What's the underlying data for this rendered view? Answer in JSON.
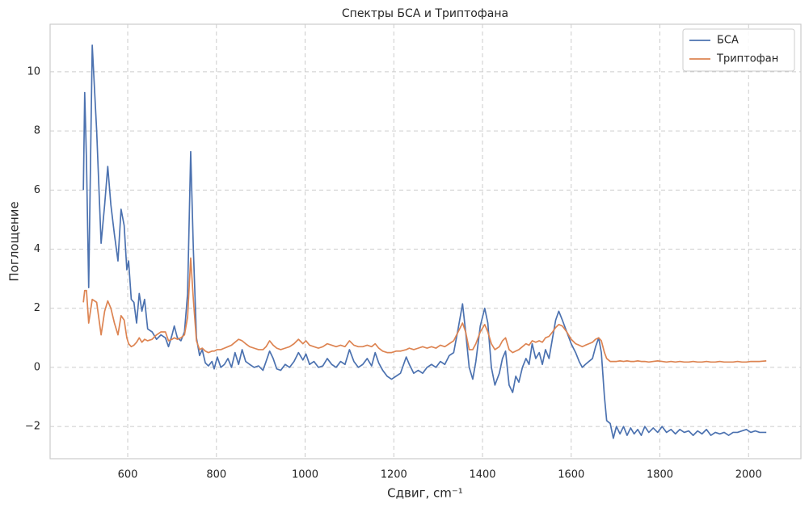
{
  "chart_data": {
    "type": "line",
    "title": "Спектры БСА и Триптофана",
    "xlabel": "Сдвиг, cm⁻¹",
    "ylabel": "Поглощение",
    "xlim": [
      425,
      2118
    ],
    "ylim": [
      -3.09,
      11.61
    ],
    "xticks": [
      600,
      800,
      1000,
      1200,
      1400,
      1600,
      1800,
      2000
    ],
    "yticks": [
      {
        "value": -2,
        "label": "−2"
      },
      0,
      2,
      4,
      6,
      8,
      10
    ],
    "grid": true,
    "legend": "upper right",
    "x": [
      500,
      503,
      507,
      512,
      520,
      530,
      540,
      548,
      555,
      562,
      570,
      578,
      585,
      592,
      598,
      602,
      608,
      614,
      620,
      626,
      632,
      638,
      645,
      655,
      665,
      675,
      685,
      692,
      700,
      705,
      712,
      720,
      728,
      735,
      742,
      748,
      755,
      762,
      768,
      775,
      782,
      790,
      795,
      802,
      810,
      818,
      826,
      834,
      842,
      850,
      858,
      866,
      875,
      885,
      895,
      905,
      912,
      920,
      928,
      936,
      945,
      955,
      965,
      975,
      985,
      995,
      1002,
      1010,
      1020,
      1030,
      1040,
      1050,
      1060,
      1070,
      1080,
      1090,
      1100,
      1110,
      1120,
      1130,
      1140,
      1150,
      1158,
      1166,
      1175,
      1185,
      1195,
      1205,
      1215,
      1228,
      1235,
      1245,
      1255,
      1265,
      1275,
      1285,
      1295,
      1305,
      1315,
      1325,
      1335,
      1345,
      1355,
      1362,
      1370,
      1378,
      1385,
      1395,
      1405,
      1412,
      1420,
      1428,
      1438,
      1445,
      1452,
      1460,
      1468,
      1475,
      1482,
      1490,
      1498,
      1505,
      1512,
      1520,
      1528,
      1535,
      1542,
      1550,
      1558,
      1565,
      1572,
      1580,
      1590,
      1600,
      1610,
      1618,
      1625,
      1632,
      1640,
      1648,
      1655,
      1662,
      1668,
      1675,
      1680,
      1688,
      1695,
      1702,
      1710,
      1718,
      1726,
      1734,
      1742,
      1750,
      1758,
      1766,
      1775,
      1785,
      1795,
      1805,
      1815,
      1825,
      1835,
      1845,
      1855,
      1865,
      1875,
      1885,
      1895,
      1905,
      1915,
      1925,
      1935,
      1945,
      1955,
      1965,
      1975,
      1985,
      1995,
      2005,
      2015,
      2025,
      2040
    ],
    "series": [
      {
        "name": "БСА",
        "color": "#4c72b0",
        "values": [
          6.0,
          9.3,
          7.0,
          2.7,
          10.9,
          8.0,
          4.2,
          5.5,
          6.8,
          5.5,
          4.5,
          3.6,
          5.35,
          4.8,
          3.3,
          3.6,
          2.3,
          2.2,
          1.5,
          2.5,
          1.9,
          2.3,
          1.3,
          1.2,
          0.95,
          1.1,
          1.0,
          0.7,
          1.1,
          1.4,
          1.0,
          0.9,
          1.2,
          2.5,
          7.3,
          4.0,
          1.0,
          0.4,
          0.6,
          0.15,
          0.05,
          0.2,
          -0.05,
          0.35,
          0.0,
          0.1,
          0.3,
          0.0,
          0.5,
          0.1,
          0.6,
          0.2,
          0.1,
          0.0,
          0.05,
          -0.1,
          0.2,
          0.55,
          0.3,
          -0.05,
          -0.1,
          0.1,
          0.0,
          0.2,
          0.5,
          0.25,
          0.45,
          0.1,
          0.2,
          0.0,
          0.05,
          0.3,
          0.1,
          0.0,
          0.2,
          0.1,
          0.6,
          0.2,
          0.0,
          0.1,
          0.3,
          0.05,
          0.5,
          0.15,
          -0.1,
          -0.3,
          -0.4,
          -0.3,
          -0.2,
          0.35,
          0.1,
          -0.2,
          -0.1,
          -0.2,
          0.0,
          0.1,
          0.0,
          0.2,
          0.1,
          0.4,
          0.5,
          1.3,
          2.15,
          1.2,
          0.0,
          -0.4,
          0.2,
          1.4,
          2.0,
          1.5,
          0.0,
          -0.6,
          -0.2,
          0.3,
          0.55,
          -0.6,
          -0.85,
          -0.3,
          -0.5,
          0.0,
          0.3,
          0.1,
          0.8,
          0.3,
          0.5,
          0.1,
          0.6,
          0.3,
          1.0,
          1.6,
          1.9,
          1.6,
          1.2,
          0.8,
          0.5,
          0.2,
          0.0,
          0.1,
          0.2,
          0.3,
          0.7,
          1.0,
          0.5,
          -1.0,
          -1.8,
          -1.9,
          -2.4,
          -2.0,
          -2.25,
          -2.0,
          -2.3,
          -2.05,
          -2.25,
          -2.1,
          -2.3,
          -2.0,
          -2.2,
          -2.05,
          -2.2,
          -2.0,
          -2.2,
          -2.1,
          -2.25,
          -2.1,
          -2.2,
          -2.15,
          -2.3,
          -2.15,
          -2.25,
          -2.1,
          -2.3,
          -2.2,
          -2.25,
          -2.2,
          -2.3,
          -2.2,
          -2.2,
          -2.15,
          -2.1,
          -2.2,
          -2.15,
          -2.2,
          -2.2
        ]
      },
      {
        "name": "Триптофан",
        "color": "#dd8452",
        "values": [
          2.2,
          2.6,
          2.6,
          1.5,
          2.3,
          2.2,
          1.1,
          1.9,
          2.25,
          2.0,
          1.5,
          1.1,
          1.75,
          1.6,
          1.0,
          0.8,
          0.7,
          0.75,
          0.85,
          1.0,
          0.85,
          0.95,
          0.9,
          0.95,
          1.1,
          1.2,
          1.2,
          0.9,
          0.95,
          1.0,
          0.95,
          1.0,
          1.1,
          1.7,
          3.7,
          2.3,
          0.9,
          0.6,
          0.65,
          0.55,
          0.5,
          0.55,
          0.55,
          0.6,
          0.6,
          0.65,
          0.7,
          0.75,
          0.85,
          0.95,
          0.9,
          0.8,
          0.7,
          0.65,
          0.6,
          0.6,
          0.7,
          0.9,
          0.75,
          0.65,
          0.6,
          0.65,
          0.7,
          0.8,
          0.95,
          0.8,
          0.9,
          0.75,
          0.7,
          0.65,
          0.7,
          0.8,
          0.75,
          0.7,
          0.75,
          0.7,
          0.9,
          0.75,
          0.7,
          0.7,
          0.75,
          0.7,
          0.8,
          0.65,
          0.55,
          0.5,
          0.5,
          0.55,
          0.55,
          0.6,
          0.65,
          0.6,
          0.65,
          0.7,
          0.65,
          0.7,
          0.65,
          0.75,
          0.7,
          0.8,
          0.9,
          1.2,
          1.5,
          1.2,
          0.6,
          0.6,
          0.8,
          1.2,
          1.45,
          1.2,
          0.8,
          0.6,
          0.7,
          0.9,
          1.0,
          0.6,
          0.5,
          0.55,
          0.6,
          0.7,
          0.8,
          0.75,
          0.9,
          0.85,
          0.9,
          0.85,
          1.0,
          1.05,
          1.2,
          1.35,
          1.45,
          1.4,
          1.2,
          0.95,
          0.8,
          0.75,
          0.7,
          0.75,
          0.8,
          0.85,
          0.95,
          1.0,
          0.9,
          0.5,
          0.3,
          0.2,
          0.2,
          0.2,
          0.22,
          0.2,
          0.22,
          0.2,
          0.2,
          0.22,
          0.2,
          0.2,
          0.18,
          0.2,
          0.22,
          0.2,
          0.18,
          0.2,
          0.18,
          0.2,
          0.18,
          0.18,
          0.2,
          0.18,
          0.18,
          0.2,
          0.18,
          0.18,
          0.2,
          0.18,
          0.18,
          0.18,
          0.2,
          0.18,
          0.18,
          0.2,
          0.2,
          0.2,
          0.22
        ]
      }
    ]
  }
}
